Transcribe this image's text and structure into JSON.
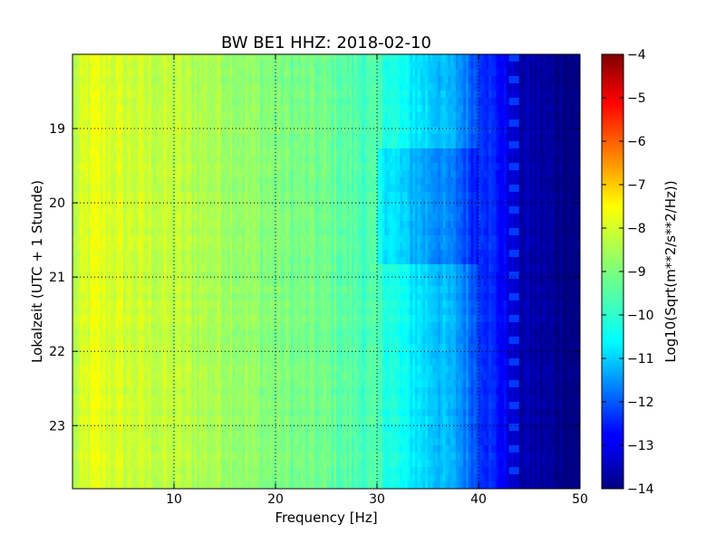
{
  "chart_data": {
    "type": "heatmap",
    "title": "BW BE1 HHZ: 2018-02-10",
    "xlabel": "Frequency [Hz]",
    "ylabel": "Lokalzeit (UTC + 1 Stunde)",
    "xlim": [
      0,
      50
    ],
    "ylim": [
      18,
      23.85
    ],
    "y_inverted": true,
    "grid": true,
    "x_ticks": [
      10,
      20,
      30,
      40,
      50
    ],
    "y_ticks": [
      19,
      20,
      21,
      22,
      23
    ],
    "colormap": "jet",
    "colorbar": {
      "label": "Log10(Sqrt(m**2/s**2/Hz))",
      "range": [
        -14,
        -4
      ],
      "ticks": [
        -4,
        -5,
        -6,
        -7,
        -8,
        -9,
        -10,
        -11,
        -12,
        -13,
        -14
      ]
    },
    "frequency_profile": {
      "frequency_hz": [
        0,
        2,
        5,
        10,
        15,
        20,
        25,
        30,
        33,
        36,
        38,
        40,
        42,
        44,
        50
      ],
      "log10_amplitude": [
        -8.5,
        -8.0,
        -8.2,
        -8.4,
        -8.6,
        -9.0,
        -9.2,
        -9.6,
        -10.3,
        -10.8,
        -11.2,
        -12.0,
        -12.6,
        -13.5,
        -14.0
      ]
    },
    "features": [
      {
        "label": "quiet band",
        "time_range": [
          19.3,
          20.8
        ],
        "frequency_range": [
          30,
          40
        ]
      },
      {
        "label": "spurious lines",
        "frequency_hz": 43.5
      }
    ]
  }
}
